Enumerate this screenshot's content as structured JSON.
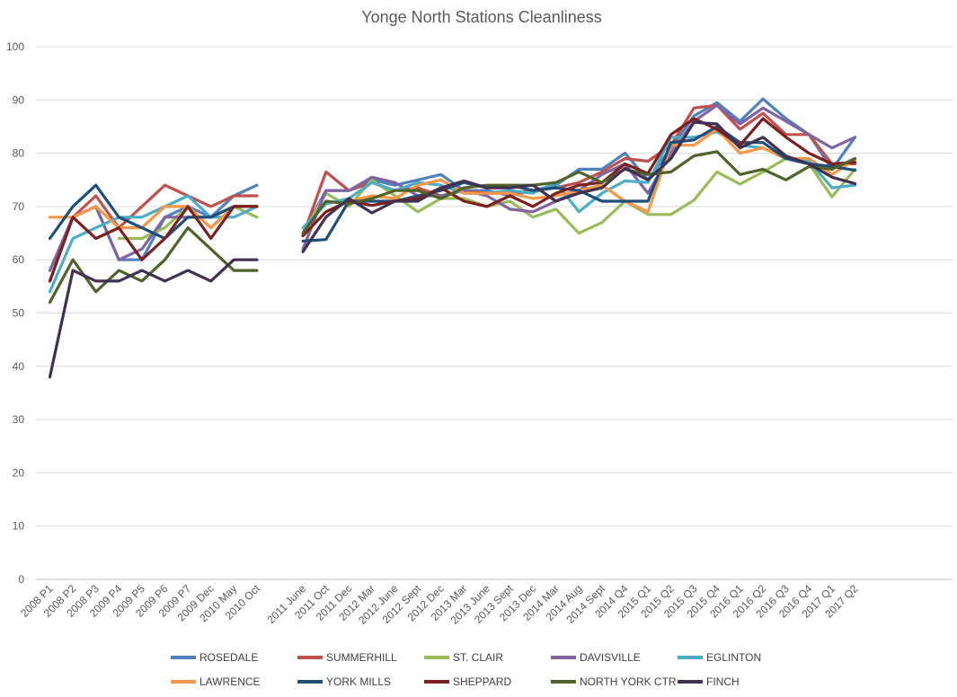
{
  "chart_data": {
    "type": "line",
    "title": "Yonge North Stations Cleanliness",
    "xlabel": "",
    "ylabel": "",
    "ylim": [
      0,
      100
    ],
    "yticks": [
      0,
      10,
      20,
      30,
      40,
      50,
      60,
      70,
      80,
      90,
      100
    ],
    "grid": true,
    "legend_position": "bottom",
    "categories": [
      "2008 P1",
      "2008 P2",
      "2008 P3",
      "2009 P4",
      "2009 P5",
      "2009 P6",
      "2009 P7",
      "2009 Dec",
      "2010 May",
      "2010 Oct",
      "",
      "2011 June",
      "2011 Oct",
      "2011 Dec",
      "2012 Mar",
      "2012 June",
      "2012 Sept",
      "2012 Dec",
      "2013 Mar",
      "2013 June",
      "2013 Sept",
      "2013 Dec",
      "2014 Mar",
      "2014 Aug",
      "2014 Sept",
      "2014 Q4",
      "2015 Q1",
      "2015 Q2",
      "2015 Q3",
      "2015 Q4",
      "2016 Q1",
      "2016 Q2",
      "2016 Q3",
      "2016 Q4",
      "2017 Q1",
      "2017 Q2"
    ],
    "series": [
      {
        "name": "ROSEDALE",
        "color": "#4f81bd",
        "values": [
          58,
          68,
          70,
          60,
          60,
          68,
          70,
          68,
          72,
          74,
          null,
          65,
          73,
          73,
          75,
          74,
          75,
          76,
          73,
          73,
          72,
          73,
          74,
          77,
          77,
          80,
          75,
          81,
          87,
          89.5,
          86,
          90.2,
          86.5,
          83.5,
          77,
          83
        ]
      },
      {
        "name": "SUMMERHILL",
        "color": "#c0504d",
        "values": [
          56,
          68,
          72,
          66,
          70,
          74,
          72,
          70,
          72,
          72,
          null,
          64.5,
          76.5,
          73,
          74.5,
          73,
          73.5,
          72,
          73,
          72.5,
          72.5,
          73,
          73.5,
          74.5,
          76.5,
          79,
          78.5,
          81.5,
          88.5,
          89,
          84.5,
          87.5,
          83.5,
          83.5,
          78,
          78
        ]
      },
      {
        "name": "ST. CLAIR",
        "color": "#9bbb59",
        "values": [
          null,
          null,
          null,
          64,
          64,
          66,
          70,
          66,
          70,
          68,
          null,
          65,
          72.5,
          70,
          75,
          72,
          69,
          71.5,
          71.5,
          70,
          71,
          68,
          69.5,
          65,
          67,
          71,
          68.5,
          68.5,
          71.2,
          76.5,
          74.2,
          76.5,
          79,
          78,
          71.8,
          77
        ]
      },
      {
        "name": "DAVISVILLE",
        "color": "#8064a2",
        "values": [
          58,
          68,
          70,
          60,
          62,
          68,
          68,
          68,
          70,
          70,
          null,
          62,
          73,
          73,
          75.5,
          74.5,
          72,
          72,
          73,
          72,
          69.5,
          69,
          71,
          73,
          76,
          78,
          72.5,
          80,
          86,
          89,
          85.5,
          88.5,
          86,
          83.5,
          81,
          83
        ]
      },
      {
        "name": "EGLINTON",
        "color": "#4bacc6",
        "values": [
          54,
          64,
          66,
          68,
          68,
          70,
          72,
          68,
          68,
          70,
          null,
          66,
          70.5,
          71.5,
          74.5,
          73,
          74.5,
          74,
          72.5,
          72.5,
          73,
          72.5,
          74.5,
          69,
          72.5,
          74.8,
          74.5,
          83,
          83,
          84,
          81.5,
          81,
          79,
          78.5,
          73.5,
          74
        ]
      },
      {
        "name": "LAWRENCE",
        "color": "#f79646",
        "values": [
          68,
          68,
          70,
          66,
          66,
          70,
          70,
          66,
          70,
          70,
          null,
          64.5,
          69,
          71,
          72,
          71.5,
          74,
          75,
          72.5,
          72.5,
          72.5,
          71.5,
          72,
          73,
          74,
          71,
          69,
          81.5,
          81.5,
          84.5,
          80,
          81,
          79,
          79,
          76,
          78.8
        ]
      },
      {
        "name": "YORK MILLS",
        "color": "#1f4e79",
        "values": [
          64,
          70,
          74,
          68,
          66,
          64,
          68,
          68,
          70,
          70,
          null,
          63.5,
          63.8,
          71,
          71,
          71,
          72,
          73,
          74.5,
          73.5,
          74,
          73,
          73.5,
          73,
          71,
          71,
          71,
          82,
          82.5,
          85,
          82,
          82,
          79,
          78,
          77.5,
          76.8
        ]
      },
      {
        "name": "SHEPPARD",
        "color": "#7b1f1f",
        "values": [
          56,
          68,
          64,
          66,
          60,
          64,
          70,
          64,
          70,
          70,
          null,
          64.5,
          69,
          71,
          70.2,
          71,
          71.5,
          73.5,
          71,
          70,
          72,
          70,
          72.5,
          74,
          74.5,
          78,
          76.2,
          83.5,
          86.5,
          84.5,
          81.5,
          86.5,
          83,
          80,
          78,
          78.3
        ]
      },
      {
        "name": "NORTH YORK CTR",
        "color": "#4f6228",
        "values": [
          52,
          60,
          54,
          58,
          56,
          60,
          66,
          62,
          58,
          58,
          null,
          65,
          71,
          70.5,
          71.5,
          73,
          73,
          71.5,
          73.5,
          74,
          74,
          74,
          74.5,
          76.5,
          74.5,
          77,
          76,
          76.5,
          79.5,
          80.3,
          76,
          77,
          75,
          77.5,
          77,
          79
        ]
      },
      {
        "name": "FINCH",
        "color": "#403152",
        "values": [
          38,
          58,
          56,
          56,
          58,
          56,
          58,
          56,
          60,
          60,
          null,
          61.5,
          68,
          71.5,
          68.8,
          71,
          71,
          73.5,
          74.8,
          73.5,
          73.5,
          74,
          71,
          72.5,
          73.5,
          77.2,
          75,
          79,
          85.8,
          85.5,
          81,
          83,
          79.5,
          78,
          75.5,
          74.3
        ]
      }
    ]
  }
}
